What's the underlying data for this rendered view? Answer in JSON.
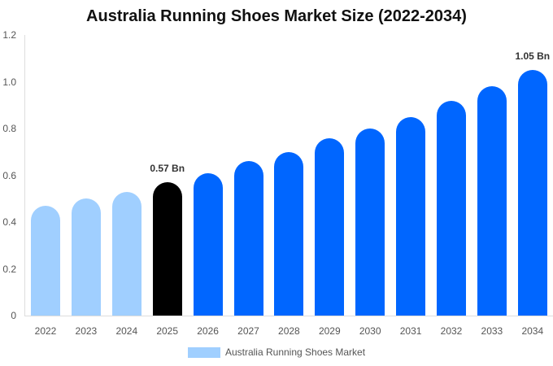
{
  "chart_data": {
    "type": "bar",
    "title": "Australia Running Shoes Market Size (2022-2034)",
    "xlabel": "",
    "ylabel": "",
    "ylim": [
      0,
      1.2
    ],
    "yticks": [
      "0",
      "0.2",
      "0.4",
      "0.6",
      "0.8",
      "1.0",
      "1.2"
    ],
    "grid": false,
    "legend_position": "bottom",
    "categories": [
      "2022",
      "2023",
      "2024",
      "2025",
      "2026",
      "2027",
      "2028",
      "2029",
      "2030",
      "2031",
      "2032",
      "2033",
      "2034"
    ],
    "series": [
      {
        "name": "Australia Running Shoes Market",
        "values": [
          0.47,
          0.5,
          0.53,
          0.57,
          0.61,
          0.66,
          0.7,
          0.76,
          0.8,
          0.85,
          0.92,
          0.98,
          1.05
        ]
      }
    ],
    "bar_colors": [
      "#a0cfff",
      "#a0cfff",
      "#a0cfff",
      "#000000",
      "#0066ff",
      "#0066ff",
      "#0066ff",
      "#0066ff",
      "#0066ff",
      "#0066ff",
      "#0066ff",
      "#0066ff",
      "#0066ff"
    ],
    "annotations": [
      {
        "category": "2025",
        "text": "0.57 Bn"
      },
      {
        "category": "2034",
        "text": "1.05 Bn"
      }
    ]
  },
  "legend": {
    "label": "Australia Running Shoes Market",
    "color": "#a0cfff"
  }
}
